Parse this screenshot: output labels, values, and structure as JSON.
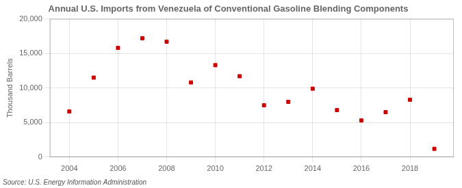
{
  "chart_data": {
    "type": "scatter",
    "title": "Annual U.S. Imports from Venezuela of Conventional Gasoline Blending Components",
    "ylabel": "Thousand Barrels",
    "annotations": [
      "Source: U.S. Energy Information Administration"
    ],
    "x": [
      2004,
      2005,
      2006,
      2007,
      2008,
      2009,
      2010,
      2011,
      2012,
      2013,
      2014,
      2015,
      2016,
      2017,
      2018,
      2019
    ],
    "values": [
      6600,
      11500,
      15800,
      17200,
      16700,
      10800,
      13300,
      11700,
      7500,
      8000,
      9900,
      6800,
      5300,
      6500,
      8300,
      1200
    ],
    "color": "#cc0000",
    "marker": "square",
    "xlim": [
      2003.2,
      2019.8
    ],
    "xticks": [
      2004,
      2006,
      2008,
      2010,
      2012,
      2014,
      2016,
      2018
    ],
    "ylim": [
      0,
      20000
    ],
    "yticks": [
      0,
      {
        "value": 5000,
        "label": "5,000"
      },
      {
        "value": 10000,
        "label": "10,000"
      },
      {
        "value": 15000,
        "label": "15,000"
      },
      {
        "value": 20000,
        "label": "20,000"
      }
    ],
    "grid": true
  }
}
